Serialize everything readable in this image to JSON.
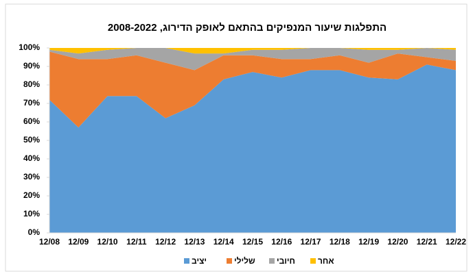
{
  "chart_data": {
    "type": "stacked_area",
    "title": "התפלגות שיעור המנפיקים בהתאם לאופק הדירוג, 2008-2022",
    "categories": [
      "12/08",
      "12/09",
      "12/10",
      "12/11",
      "12/12",
      "12/13",
      "12/14",
      "12/15",
      "12/16",
      "12/17",
      "12/18",
      "12/19",
      "12/20",
      "12/21",
      "12/22"
    ],
    "series": [
      {
        "name": "יציב",
        "color": "#5b9bd5",
        "values": [
          72,
          57,
          74,
          74,
          62,
          69,
          83,
          87,
          84,
          88,
          88,
          84,
          83,
          91,
          88
        ]
      },
      {
        "name": "שלילי",
        "color": "#ed7d31",
        "values": [
          26,
          37,
          20,
          22,
          30,
          19,
          13,
          9,
          10,
          6,
          8,
          8,
          14,
          4,
          5
        ]
      },
      {
        "name": "חיובי",
        "color": "#a5a5a5",
        "values": [
          1,
          3,
          5,
          4,
          8,
          9,
          1,
          3,
          5,
          6,
          4,
          7,
          2,
          5,
          6
        ]
      },
      {
        "name": "אחר",
        "color": "#ffc000",
        "values": [
          1,
          3,
          1,
          0,
          0,
          3,
          3,
          1,
          1,
          0,
          0,
          1,
          1,
          0,
          1
        ]
      }
    ],
    "ylim": [
      0,
      100
    ],
    "yticks": [
      {
        "value": 0,
        "label": "0%"
      },
      {
        "value": 10,
        "label": "10%"
      },
      {
        "value": 20,
        "label": "20%"
      },
      {
        "value": 30,
        "label": "30%"
      },
      {
        "value": 40,
        "label": "40%"
      },
      {
        "value": 50,
        "label": "50%"
      },
      {
        "value": 60,
        "label": "60%"
      },
      {
        "value": 70,
        "label": "70%"
      },
      {
        "value": 80,
        "label": "80%"
      },
      {
        "value": 90,
        "label": "90%"
      },
      {
        "value": 100,
        "label": "100%"
      }
    ],
    "legend": "bottom"
  }
}
